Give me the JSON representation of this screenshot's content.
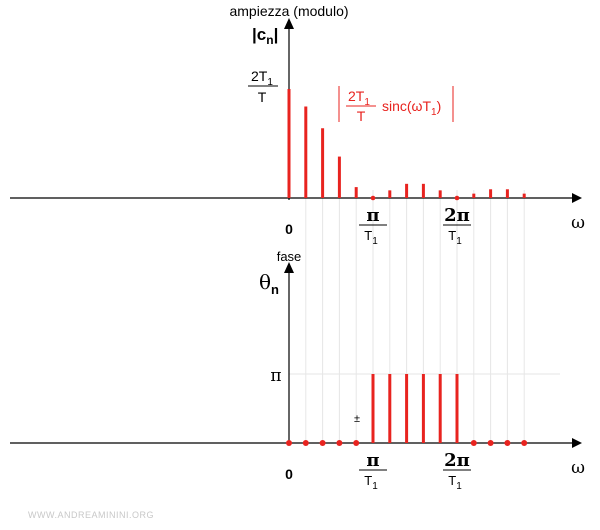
{
  "chart_data": [
    {
      "type": "bar",
      "title": "ampiezza (modulo)",
      "ylabel": "|cn|",
      "ylabel_main": "|c",
      "ylabel_sub": "n",
      "ylabel_close": "|",
      "xlabel": "ω",
      "y_tick": {
        "num": "2T",
        "num_sub": "1",
        "den": "T"
      },
      "x_ticks": [
        {
          "label": "0",
          "x": 0
        },
        {
          "label": "π",
          "sub": "T",
          "subsub": "1",
          "x": 1
        },
        {
          "label": "2π",
          "sub": "T",
          "subsub": "1",
          "x": 2
        }
      ],
      "annotation": {
        "num": "2T",
        "num_sub": "1",
        "den": "T",
        "func": "sinc(ωT",
        "func_sub": "1",
        "func_close": ")"
      },
      "x": [
        0,
        0.2,
        0.4,
        0.6,
        0.8,
        1.0,
        1.2,
        1.4,
        1.6,
        1.8,
        2.0,
        2.2,
        2.4,
        2.6,
        2.8
      ],
      "values": [
        1.0,
        0.84,
        0.64,
        0.38,
        0.1,
        0.0,
        0.07,
        0.13,
        0.13,
        0.07,
        0.0,
        0.04,
        0.08,
        0.08,
        0.04
      ],
      "ylim": [
        0,
        1
      ]
    },
    {
      "type": "bar",
      "title": "fase",
      "ylabel": "θn",
      "ylabel_main": "θ",
      "ylabel_sub": "n",
      "xlabel": "ω",
      "y_tick": {
        "label": "π",
        "value": 3.14159
      },
      "pm_label": "±",
      "x_ticks": [
        {
          "label": "0",
          "x": 0
        },
        {
          "label": "π",
          "sub": "T",
          "subsub": "1",
          "x": 1
        },
        {
          "label": "2π",
          "sub": "T",
          "subsub": "1",
          "x": 2
        }
      ],
      "x": [
        0,
        0.2,
        0.4,
        0.6,
        0.8,
        1.0,
        1.2,
        1.4,
        1.6,
        1.8,
        2.0,
        2.2,
        2.4,
        2.6,
        2.8
      ],
      "values": [
        0,
        0,
        0,
        0,
        0,
        3.14159,
        3.14159,
        3.14159,
        3.14159,
        3.14159,
        3.14159,
        0,
        0,
        0,
        0
      ],
      "ylim": [
        0,
        3.14159
      ]
    }
  ],
  "watermark": "WWW.ANDREAMININI.ORG",
  "colors": {
    "stem": "#e8231f",
    "axis": "#000000",
    "grid": "#e6e6e6"
  }
}
